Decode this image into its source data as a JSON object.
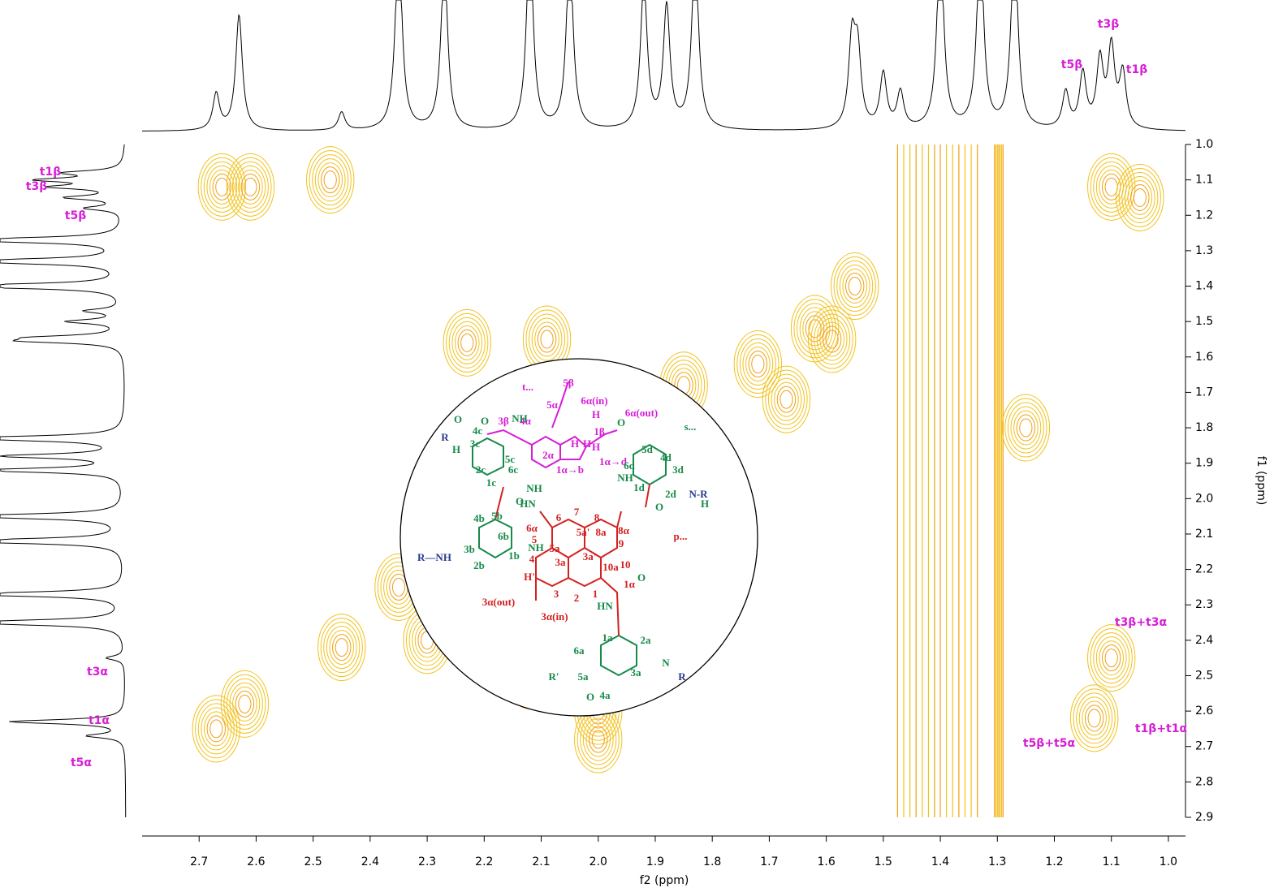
{
  "chart_data": {
    "type": "contour",
    "x_label": "f2 (ppm)",
    "y_label": "f1 (ppm)",
    "xlim": [
      2.8,
      0.97
    ],
    "ylim": [
      1.0,
      2.9
    ],
    "xticks": [
      2.7,
      2.6,
      2.5,
      2.4,
      2.3,
      2.2,
      2.1,
      {
        "value": 2.0,
        "label": "2.0"
      },
      1.9,
      1.8,
      1.7,
      1.6,
      1.5,
      1.4,
      1.3,
      1.2,
      1.1,
      {
        "value": 1.0,
        "label": "1.0"
      }
    ],
    "yticks": [
      {
        "value": 1.0,
        "label": "1.0"
      },
      1.1,
      1.2,
      1.3,
      1.4,
      1.5,
      1.6,
      1.7,
      1.8,
      1.9,
      {
        "value": 2.0,
        "label": "2.0"
      },
      2.1,
      2.2,
      2.3,
      2.4,
      2.5,
      2.6,
      2.7,
      2.8,
      2.9
    ],
    "contour_color": "#f2c21a",
    "strong_color": "#f0a010",
    "label_color": "#d61ed6",
    "peaks": {
      "x": [
        2.66,
        2.61,
        2.47,
        1.1,
        1.13,
        2.67,
        2.62,
        2.09,
        2.23,
        2.0,
        2.0,
        1.1,
        1.85,
        1.72,
        1.62,
        1.55,
        2.35,
        2.3,
        2.45,
        2.12,
        1.05,
        1.67,
        1.25,
        1.59
      ],
      "y": [
        1.12,
        1.12,
        1.1,
        2.45,
        2.62,
        2.65,
        2.58,
        1.55,
        1.56,
        2.6,
        2.68,
        1.12,
        1.68,
        1.62,
        1.52,
        1.4,
        2.25,
        2.4,
        2.42,
        2.5,
        1.15,
        1.72,
        1.8,
        1.55
      ]
    },
    "bands": {
      "from": [
        1.475,
        1.4,
        1.305
      ],
      "to": [
        1.41,
        1.335,
        1.29
      ]
    },
    "projection": {
      "ppm": [
        2.67,
        2.63,
        2.45,
        2.35,
        2.27,
        2.12,
        2.05,
        1.92,
        1.88,
        1.83,
        1.555,
        1.545,
        1.5,
        1.47,
        1.4,
        1.33,
        1.27,
        1.18,
        1.15,
        1.12,
        1.1,
        1.08
      ],
      "height": [
        0.3,
        0.95,
        0.15,
        1.6,
        1.4,
        1.6,
        1.5,
        1.2,
        1.0,
        1.5,
        0.7,
        0.6,
        0.45,
        0.3,
        1.6,
        1.6,
        1.6,
        0.3,
        0.45,
        0.55,
        0.65,
        0.45
      ]
    },
    "annotations": [
      "t3β",
      "t5β",
      "t1β",
      "t1β",
      "t3β",
      "t5β",
      "t3α",
      "t1α",
      "t5α",
      "t3β+t3α",
      "t1β+t1α",
      "t5β+t5α"
    ],
    "structure_labels": [
      "t...",
      "s...",
      "p...",
      "5β",
      "5α",
      "6α(in)",
      "6α(out)",
      "4α",
      "3β",
      "2α",
      "1β",
      "1α→b",
      "1α→d",
      "4c",
      "3c",
      "2c",
      "1c",
      "5c",
      "6c",
      "5d",
      "4d",
      "3d",
      "6d",
      "2d",
      "1d",
      "4b",
      "5b",
      "6b",
      "3b",
      "2b",
      "1b",
      "6α",
      "6",
      "7",
      "8",
      "8α",
      "5",
      "5a'",
      "8a",
      "9",
      "5a",
      "3a'",
      "10",
      "3a",
      "10a",
      "4",
      "1α",
      "1",
      "2",
      "3",
      "3α(out)",
      "3α(in)",
      "1a",
      "2a",
      "3a",
      "4a",
      "5a",
      "6a",
      "R",
      "O",
      "O",
      "NH",
      "H",
      "H",
      "O",
      "NH",
      "HN",
      "NH",
      "O",
      "R—NH",
      "NH",
      "H'",
      "HN",
      "O",
      "R'",
      "O",
      "O",
      "N-R",
      "H",
      "H",
      "N",
      "R",
      "H",
      "H"
    ]
  }
}
